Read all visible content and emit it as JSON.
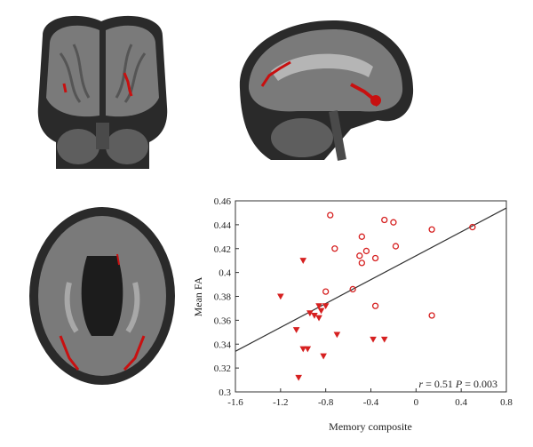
{
  "chart_data": {
    "type": "scatter",
    "xlabel": "Memory composite",
    "ylabel": "Mean FA",
    "xlim": [
      -1.6,
      0.8
    ],
    "ylim": [
      0.3,
      0.46
    ],
    "xticks": [
      "-1.6",
      "-1.2",
      "-0.8",
      "-0.4",
      "0",
      "0.4",
      "0.8"
    ],
    "yticks": [
      "0.3",
      "0.32",
      "0.34",
      "0.36",
      "0.38",
      "0.4",
      "0.42",
      "0.44",
      "0.46"
    ],
    "grid": false,
    "annotation": {
      "r_label": "r",
      "r_value": "= 0.51",
      "p_label": "P",
      "p_value": "= 0.003"
    },
    "marker_color": "#d62020",
    "regression_line": {
      "x": [
        -1.6,
        0.8
      ],
      "y": [
        0.334,
        0.454
      ]
    },
    "series": [
      {
        "marker": "circle-open",
        "points": [
          [
            -0.76,
            0.448
          ],
          [
            -0.28,
            0.444
          ],
          [
            -0.2,
            0.442
          ],
          [
            -0.48,
            0.43
          ],
          [
            -0.72,
            0.42
          ],
          [
            -0.44,
            0.418
          ],
          [
            -0.5,
            0.414
          ],
          [
            -0.36,
            0.412
          ],
          [
            -0.48,
            0.408
          ],
          [
            -0.18,
            0.422
          ],
          [
            0.14,
            0.436
          ],
          [
            0.5,
            0.438
          ],
          [
            -0.56,
            0.386
          ],
          [
            -0.8,
            0.384
          ],
          [
            -0.36,
            0.372
          ],
          [
            0.14,
            0.364
          ]
        ]
      },
      {
        "marker": "triangle-down",
        "points": [
          [
            -1.0,
            0.41
          ],
          [
            -1.2,
            0.38
          ],
          [
            -0.86,
            0.372
          ],
          [
            -0.8,
            0.372
          ],
          [
            -0.84,
            0.368
          ],
          [
            -0.94,
            0.366
          ],
          [
            -0.9,
            0.364
          ],
          [
            -0.86,
            0.362
          ],
          [
            -1.06,
            0.352
          ],
          [
            -0.7,
            0.348
          ],
          [
            -0.38,
            0.344
          ],
          [
            -0.28,
            0.344
          ],
          [
            -1.0,
            0.336
          ],
          [
            -0.96,
            0.336
          ],
          [
            -0.82,
            0.33
          ],
          [
            -1.04,
            0.312
          ]
        ]
      }
    ]
  }
}
